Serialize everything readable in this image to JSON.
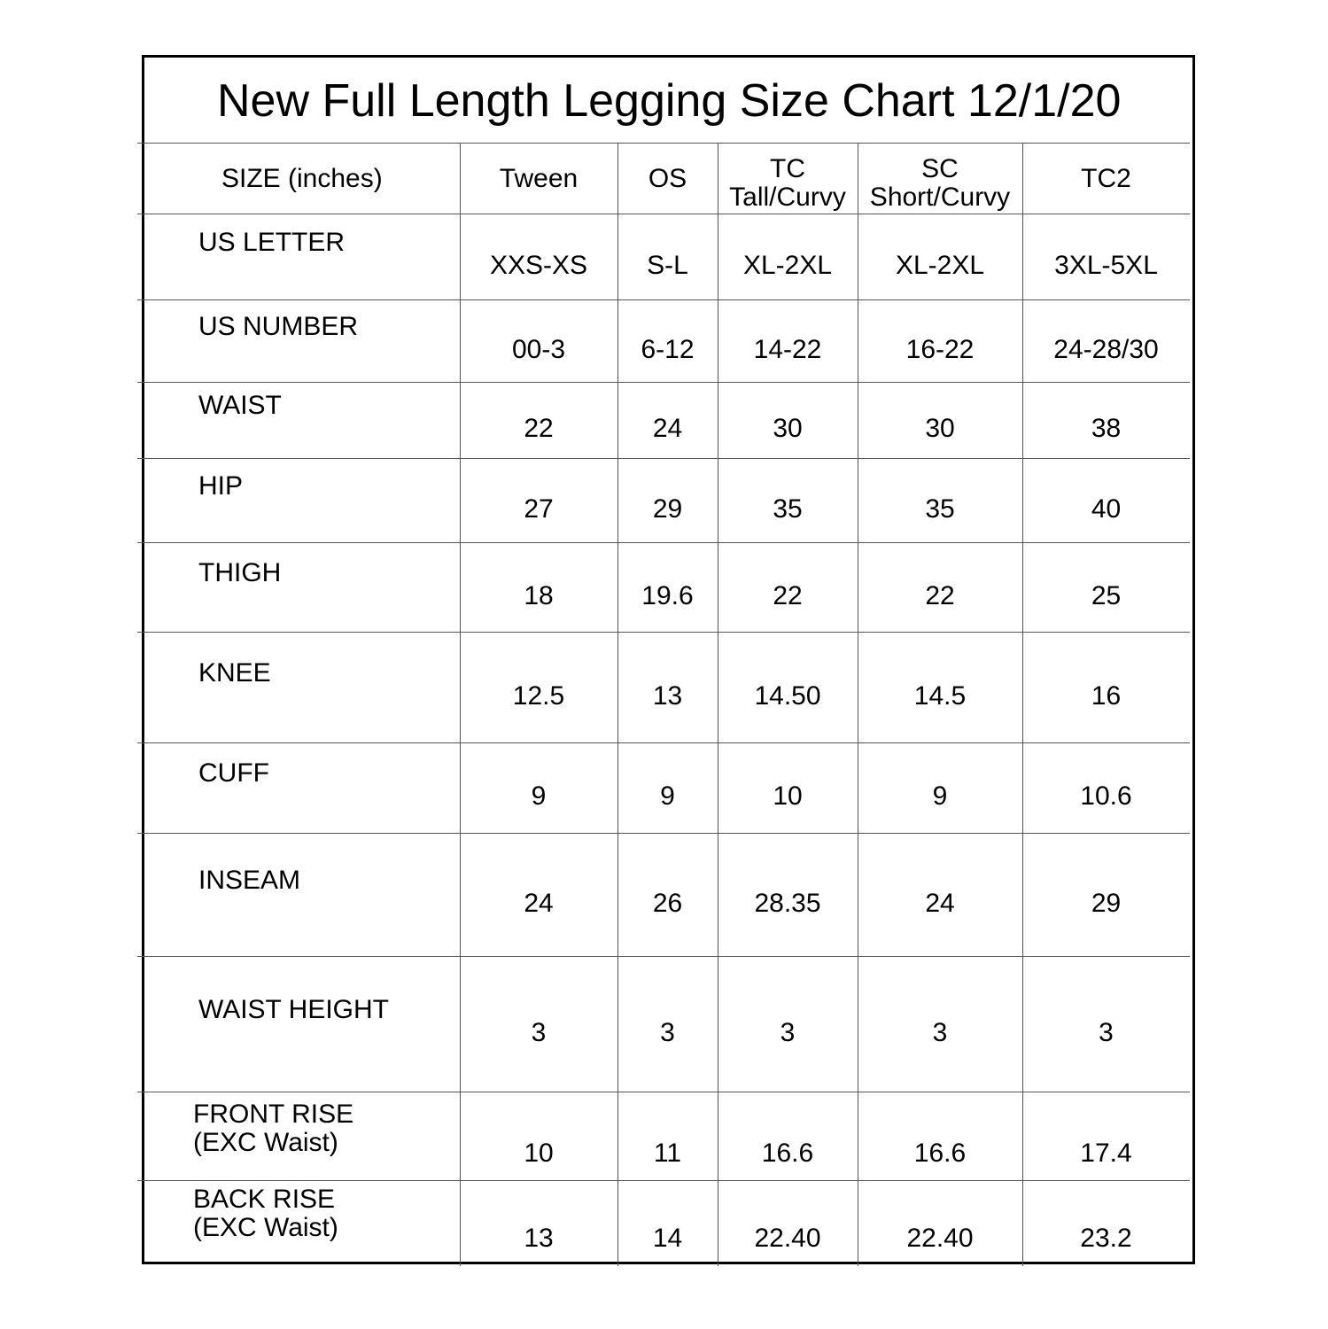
{
  "title": "New Full Length Legging Size Chart 12/1/20",
  "header": {
    "size_label": "SIZE (inches)",
    "columns": [
      "Tween",
      "OS",
      "TC\nTall/Curvy",
      "SC\nShort/Curvy",
      "TC2"
    ]
  },
  "rows": [
    {
      "label": "US LETTER",
      "values": [
        "XXS-XS",
        "S-L",
        "XL-2XL",
        "XL-2XL",
        "3XL-5XL"
      ]
    },
    {
      "label": "US NUMBER",
      "values": [
        "00-3",
        "6-12",
        "14-22",
        "16-22",
        "24-28/30"
      ]
    },
    {
      "label": "WAIST",
      "values": [
        "22",
        "24",
        "30",
        "30",
        "38"
      ]
    },
    {
      "label": "HIP",
      "values": [
        "27",
        "29",
        "35",
        "35",
        "40"
      ]
    },
    {
      "label": "THIGH",
      "values": [
        "18",
        "19.6",
        "22",
        "22",
        "25"
      ]
    },
    {
      "label": "KNEE",
      "values": [
        "12.5",
        "13",
        "14.50",
        "14.5",
        "16"
      ]
    },
    {
      "label": "CUFF",
      "values": [
        "9",
        "9",
        "10",
        "9",
        "10.6"
      ]
    },
    {
      "label": "INSEAM",
      "values": [
        "24",
        "26",
        "28.35",
        "24",
        "29"
      ]
    },
    {
      "label": "WAIST HEIGHT",
      "values": [
        "3",
        "3",
        "3",
        "3",
        "3"
      ]
    },
    {
      "label": "FRONT RISE\n(EXC Waist)",
      "values": [
        "10",
        "11",
        "16.6",
        "16.6",
        "17.4"
      ]
    },
    {
      "label": "BACK RISE\n(EXC Waist)",
      "values": [
        "13",
        "14",
        "22.40",
        "22.40",
        "23.2"
      ]
    }
  ]
}
